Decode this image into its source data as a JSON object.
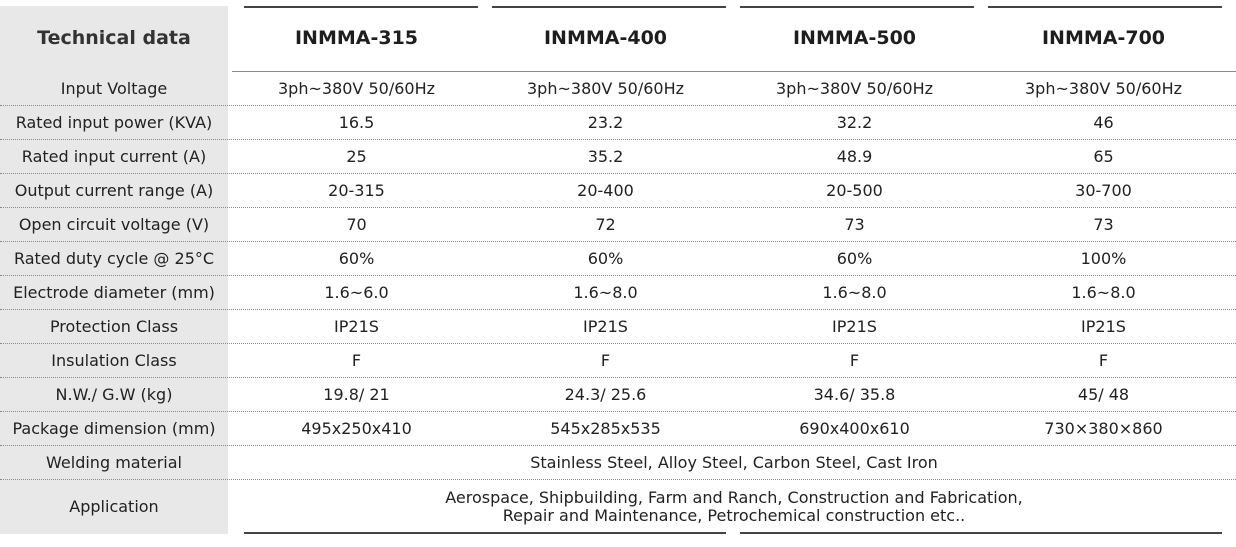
{
  "header": {
    "label": "Technical data",
    "models": [
      "INMMA-315",
      "INMMA-400",
      "INMMA-500",
      "INMMA-700"
    ]
  },
  "rows": [
    {
      "label": "Input Voltage",
      "values": [
        "3ph~380V 50/60Hz",
        "3ph~380V 50/60Hz",
        "3ph~380V 50/60Hz",
        "3ph~380V 50/60Hz"
      ]
    },
    {
      "label": "Rated input power (KVA)",
      "values": [
        "16.5",
        "23.2",
        "32.2",
        "46"
      ]
    },
    {
      "label": "Rated input current (A)",
      "values": [
        "25",
        "35.2",
        "48.9",
        "65"
      ]
    },
    {
      "label": "Output current range (A)",
      "values": [
        "20-315",
        "20-400",
        "20-500",
        "30-700"
      ]
    },
    {
      "label": "Open circuit voltage (V)",
      "values": [
        "70",
        "72",
        "73",
        "73"
      ]
    },
    {
      "label": "Rated duty cycle @ 25°C",
      "values": [
        "60%",
        "60%",
        "60%",
        "100%"
      ]
    },
    {
      "label": "Electrode diameter (mm)",
      "values": [
        "1.6~6.0",
        "1.6~8.0",
        "1.6~8.0",
        "1.6~8.0"
      ]
    },
    {
      "label": "Protection Class",
      "values": [
        "IP21S",
        "IP21S",
        "IP21S",
        "IP21S"
      ]
    },
    {
      "label": "Insulation Class",
      "values": [
        "F",
        "F",
        "F",
        "F"
      ]
    },
    {
      "label": "N.W./ G.W (kg)",
      "values": [
        "19.8/ 21",
        "24.3/ 25.6",
        "34.6/ 35.8",
        "45/ 48"
      ]
    },
    {
      "label": "Package dimension (mm)",
      "values": [
        "495x250x410",
        "545x285x535",
        "690x400x610",
        "730×380×860"
      ]
    }
  ],
  "welding": {
    "label": "Welding material",
    "value": "Stainless Steel, Alloy Steel, Carbon Steel, Cast Iron"
  },
  "application": {
    "label": "Application",
    "lines": [
      "Aerospace, Shipbuilding, Farm and Ranch, Construction and Fabrication,",
      "Repair and Maintenance, Petrochemical construction etc.."
    ]
  }
}
